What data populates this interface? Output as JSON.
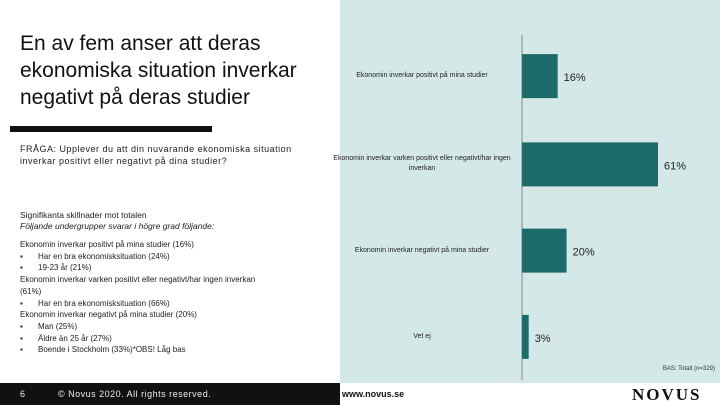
{
  "chart_data": {
    "type": "hbar",
    "categories": [
      "Ekonomin inverkar positivt på mina studier",
      "Ekonomin inverkar varken positivt eller negativt/har ingen inverkan",
      "Ekonomin inverkar negativt på mina studier",
      "Vet ej"
    ],
    "values": [
      16,
      61,
      20,
      3
    ],
    "value_labels": [
      "16%",
      "61%",
      "20%",
      "3%"
    ],
    "color": "#1d6a6a",
    "xlim": [
      0,
      61
    ]
  },
  "left_panel": {
    "title": "En av fem anser att deras ekonomiska situation inverkar negativt på deras studier",
    "question": "FRÅGA: Upplever du att din nuvarande ekonomiska situation inverkar positivt eller negativt på dina studier?",
    "significance_heading": "Signifikanta skillnader mot totalen",
    "significance_subheading": "Följande undergrupper svarar i högre grad följande:",
    "groups": [
      {
        "heading": "Ekonomin inverkar positivt på mina studier (16%)",
        "bullets": [
          "Har en bra ekonomisksituation (24%)",
          "19-23 år (21%)"
        ]
      },
      {
        "heading": "Ekonomin inverkar varken positivt eller negativt/har ingen inverkan (61%)",
        "bullets": [
          "Har en bra ekonomisksituation (66%)"
        ]
      },
      {
        "heading": "Ekonomin inverkar negativt på mina studier (20%)",
        "bullets": [
          "Man (25%)",
          "Äldre än 25 år (27%)",
          "Boende i Stockholm (33%)*OBS! Låg bas"
        ]
      }
    ]
  },
  "footer": {
    "page": "6",
    "copyright": "© Novus 2020. All rights reserved.",
    "url": "www.novus.se",
    "logo": "NOVUS",
    "base": "BAS: Totalt (n=329)"
  }
}
